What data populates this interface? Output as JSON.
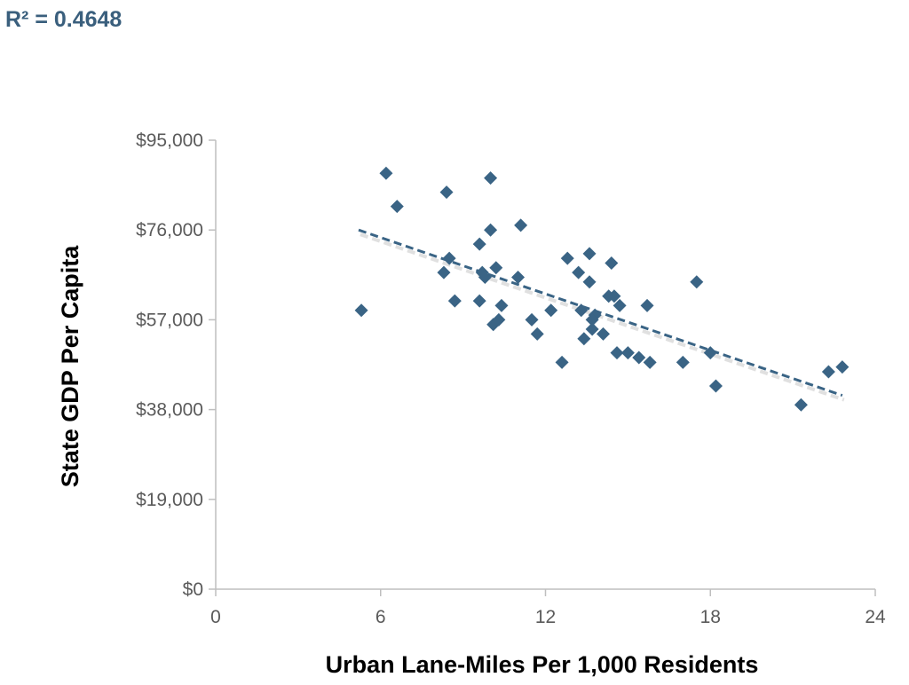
{
  "annotation": "R² = 0.4648",
  "chart_data": {
    "type": "scatter",
    "xlabel": "Urban Lane-Miles Per 1,000 Residents",
    "ylabel": "State GDP Per Capita",
    "xlim": [
      0,
      24
    ],
    "ylim": [
      0,
      95000
    ],
    "xticks": [
      0,
      6,
      12,
      18,
      24
    ],
    "xtick_labels": [
      "0",
      "6",
      "12",
      "18",
      "24"
    ],
    "yticks": [
      0,
      19000,
      38000,
      57000,
      76000,
      95000
    ],
    "ytick_labels": [
      "$0",
      "$19,000",
      "$38,000",
      "$57,000",
      "$76,000",
      "$95,000"
    ],
    "grid": false,
    "marker": "diamond",
    "colors": {
      "points": "#3a6485",
      "trend": "#3a6485",
      "axis": "#bfbfbf"
    },
    "trendline": {
      "type": "linear",
      "style": "dashed",
      "x": [
        5.2,
        22.8
      ],
      "y": [
        76000,
        41000
      ]
    },
    "x": [
      5.3,
      6.2,
      6.6,
      8.4,
      8.3,
      8.5,
      8.7,
      9.6,
      9.7,
      9.6,
      9.8,
      10.2,
      10.1,
      10.0,
      10.0,
      10.4,
      10.3,
      11.1,
      11.0,
      11.5,
      11.7,
      12.2,
      12.6,
      12.8,
      13.2,
      13.4,
      13.3,
      13.6,
      13.7,
      13.8,
      13.7,
      13.6,
      14.1,
      14.3,
      14.4,
      14.6,
      14.5,
      14.7,
      15.0,
      15.4,
      15.7,
      15.8,
      17.0,
      17.5,
      18.0,
      18.2,
      21.3,
      22.3,
      22.8
    ],
    "y": [
      59000,
      88000,
      81000,
      84000,
      67000,
      70000,
      61000,
      61000,
      67000,
      73000,
      66000,
      68000,
      56000,
      76000,
      87000,
      60000,
      57000,
      77000,
      66000,
      57000,
      54000,
      59000,
      48000,
      70000,
      67000,
      53000,
      59000,
      71000,
      55000,
      58000,
      57000,
      65000,
      54000,
      62000,
      69000,
      50000,
      62000,
      60000,
      50000,
      49000,
      60000,
      48000,
      48000,
      65000,
      50000,
      43000,
      39000,
      46000,
      47000
    ]
  }
}
